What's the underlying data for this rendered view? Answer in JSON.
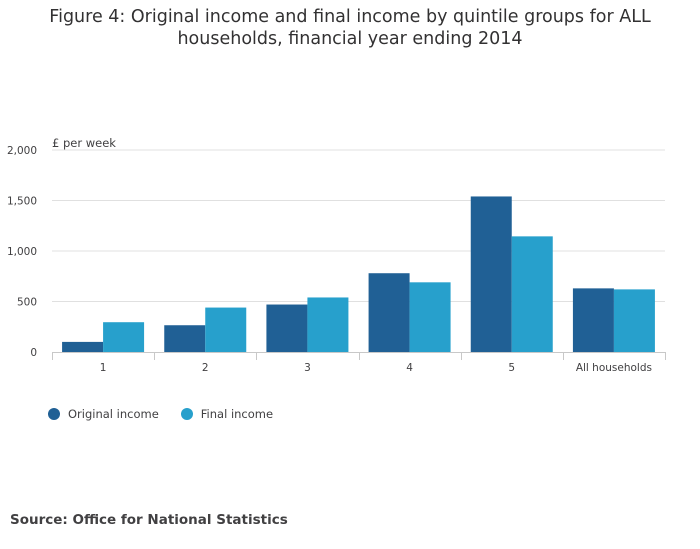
{
  "source_text": "Source: Office for National Statistics",
  "colors": {
    "original": "#206095",
    "final": "#27a0cc",
    "grid": "#e0e0e0",
    "axis": "#c8c8c8",
    "text": "#414042"
  },
  "chart_data": {
    "type": "bar",
    "title": "Figure 4: Original income and final income by quintile groups for ALL households, financial year ending 2014",
    "ylabel": "£ per week",
    "xlabel": "",
    "categories": [
      "1",
      "2",
      "3",
      "4",
      "5",
      "All households"
    ],
    "series": [
      {
        "name": "Original income",
        "values": [
          100,
          265,
          470,
          780,
          1540,
          630
        ]
      },
      {
        "name": "Final income",
        "values": [
          295,
          440,
          540,
          690,
          1145,
          620
        ]
      }
    ],
    "ylim": [
      0,
      2000
    ],
    "yticks": [
      0,
      500,
      1000,
      1500,
      2000
    ],
    "ytick_labels": [
      "0",
      "500",
      "1,000",
      "1,500",
      "2,000"
    ],
    "grid": true,
    "legend_position": "bottom-left"
  }
}
